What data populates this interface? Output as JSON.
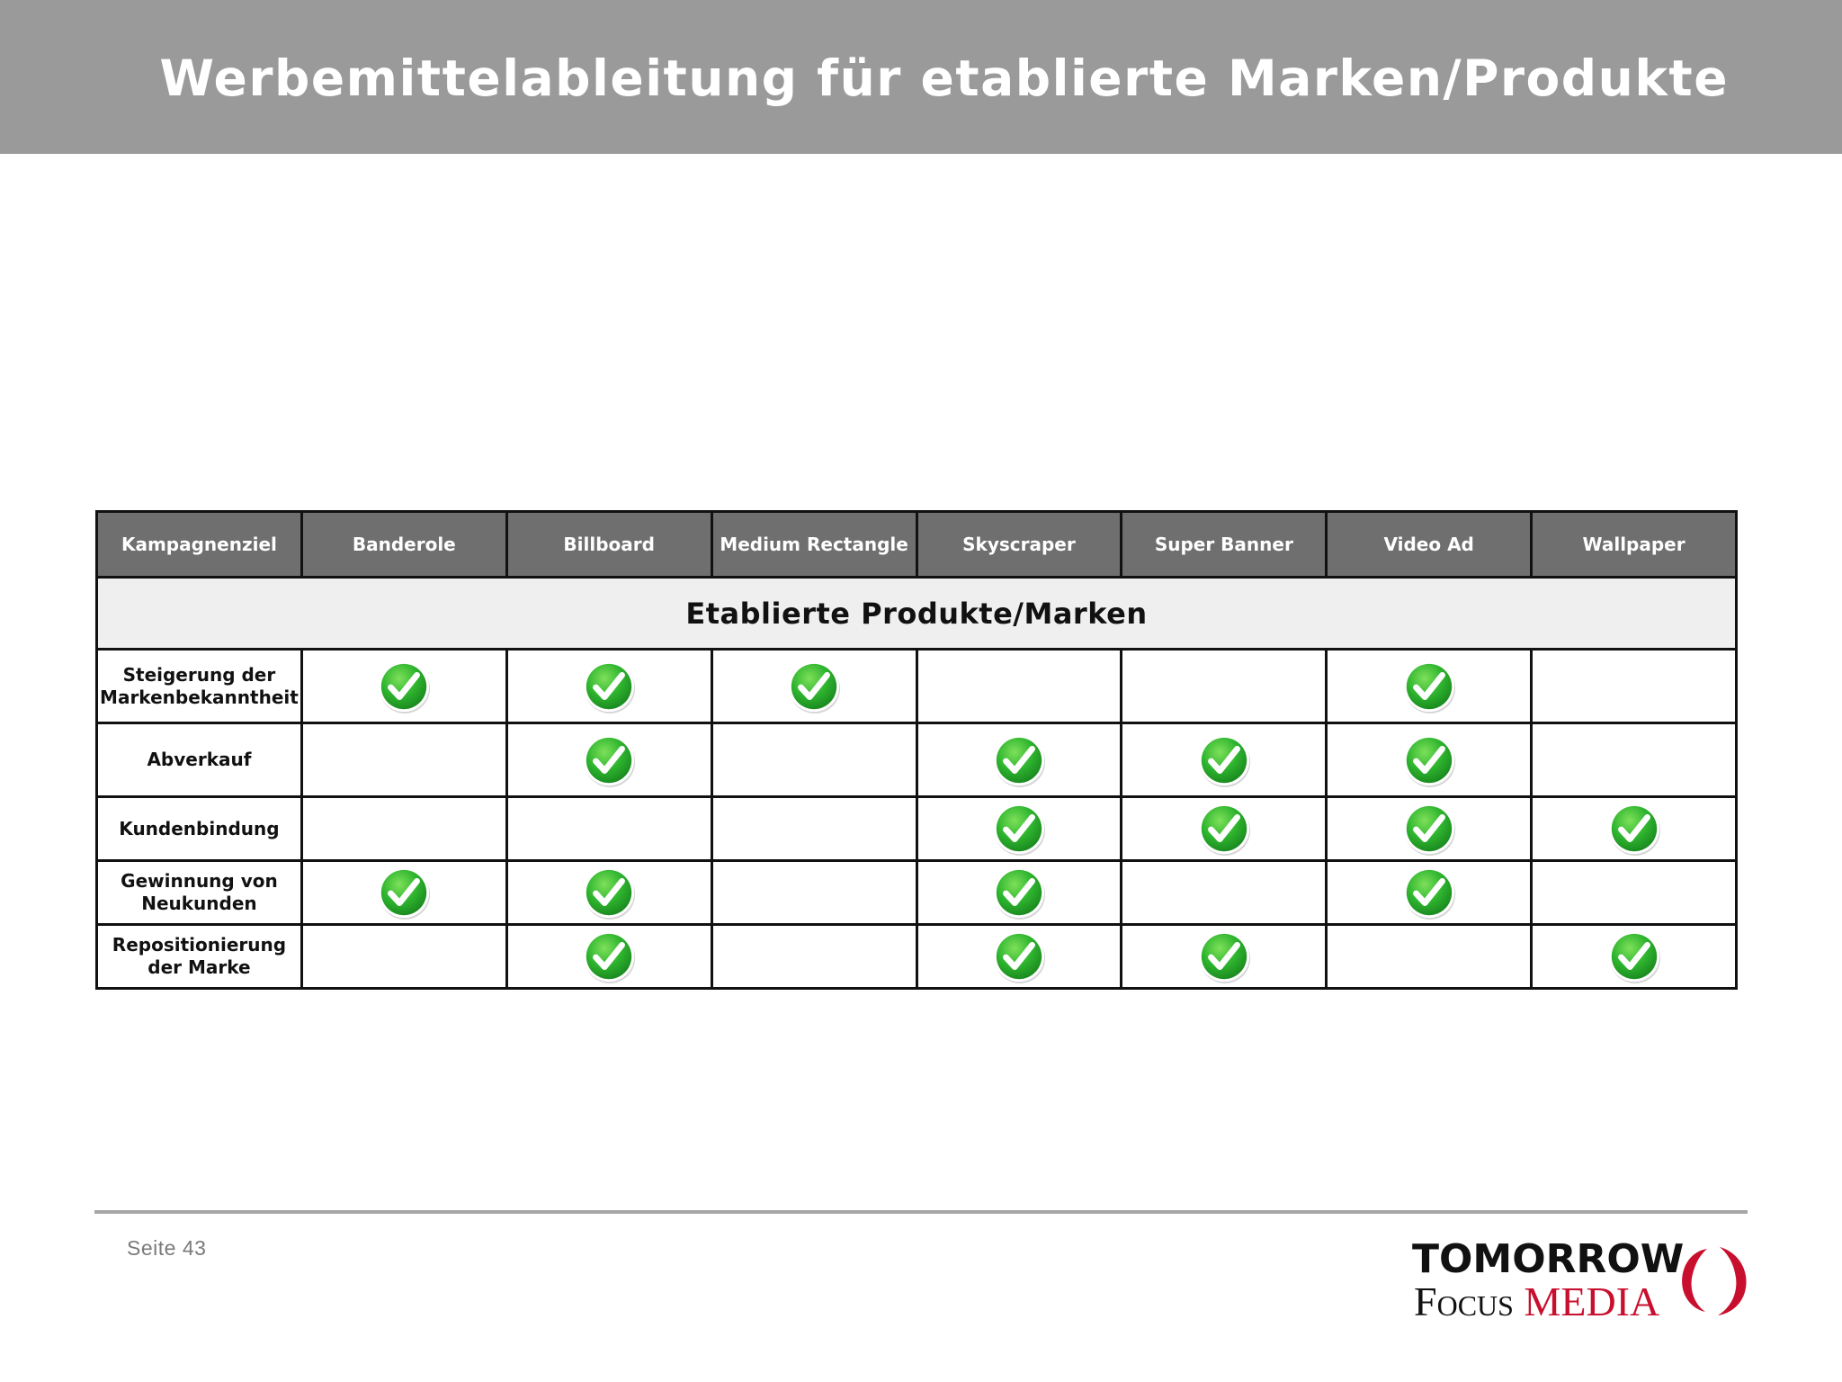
{
  "header": {
    "title": "Werbemittelableitung für etablierte Marken/Produkte",
    "background_color": "#9a9a9a"
  },
  "matrix": {
    "columns": [
      "Kampagnenziel",
      "Banderole",
      "Billboard",
      "Medium Rectangle",
      "Skyscraper",
      "Super Banner",
      "Video Ad",
      "Wallpaper"
    ],
    "section_heading": "Etablierte Produkte/Marken",
    "check_icon": "green-checkmark-icon",
    "check_color": "#2fb52f",
    "rows": [
      {
        "goal": "Steigerung der Markenbekanntheit",
        "checks": [
          true,
          true,
          true,
          false,
          false,
          true,
          false
        ]
      },
      {
        "goal": "Abverkauf",
        "checks": [
          false,
          true,
          false,
          true,
          true,
          true,
          false
        ]
      },
      {
        "goal": "Kundenbindung",
        "checks": [
          false,
          false,
          false,
          true,
          true,
          true,
          true
        ]
      },
      {
        "goal": "Gewinnung von Neukunden",
        "checks": [
          true,
          true,
          false,
          true,
          false,
          true,
          false
        ]
      },
      {
        "goal": "Repositionierung der Marke",
        "checks": [
          false,
          true,
          false,
          true,
          true,
          false,
          true
        ]
      }
    ]
  },
  "footer": {
    "page_label": "Seite 43",
    "logo": {
      "line1": "TOMORROW",
      "focus": "Focus",
      "media": "MEDIA",
      "accent_color": "#c8102e"
    }
  }
}
